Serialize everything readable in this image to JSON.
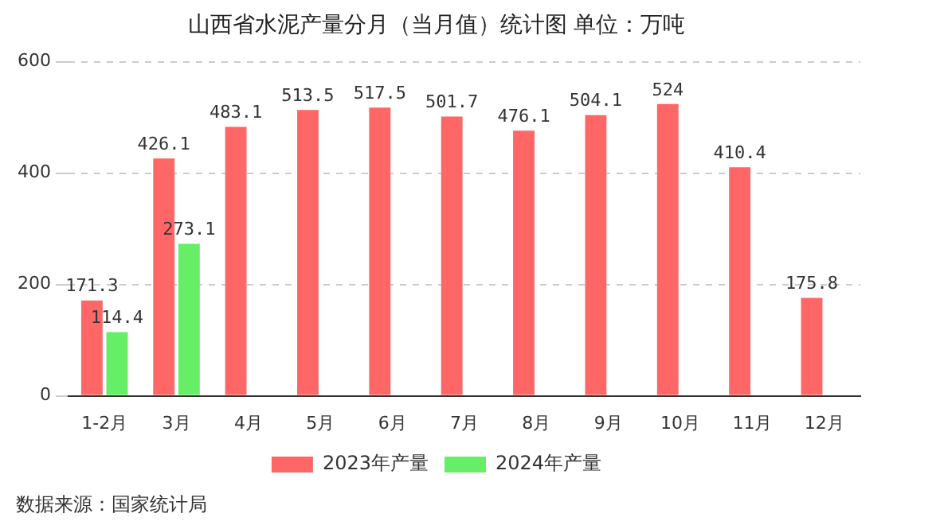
{
  "chart_data": {
    "type": "bar",
    "title": "山西省水泥产量分月（当月值）统计图 单位：万吨",
    "categories": [
      "1-2月",
      "3月",
      "4月",
      "5月",
      "6月",
      "7月",
      "8月",
      "9月",
      "10月",
      "11月",
      "12月"
    ],
    "series": [
      {
        "name": "2023年产量",
        "color": "#ff6666",
        "values": [
          171.3,
          426.1,
          483.1,
          513.5,
          517.5,
          501.7,
          476.1,
          504.1,
          524,
          410.4,
          175.8
        ]
      },
      {
        "name": "2024年产量",
        "color": "#66ee66",
        "values": [
          114.4,
          273.1,
          null,
          null,
          null,
          null,
          null,
          null,
          null,
          null,
          null
        ]
      }
    ],
    "ylim": [
      0,
      600
    ],
    "yticks": [
      0,
      200,
      400,
      600
    ],
    "grid": "y",
    "legend": "bottom",
    "data_labels": true,
    "annotations": [
      "数据来源：国家统计局"
    ]
  }
}
